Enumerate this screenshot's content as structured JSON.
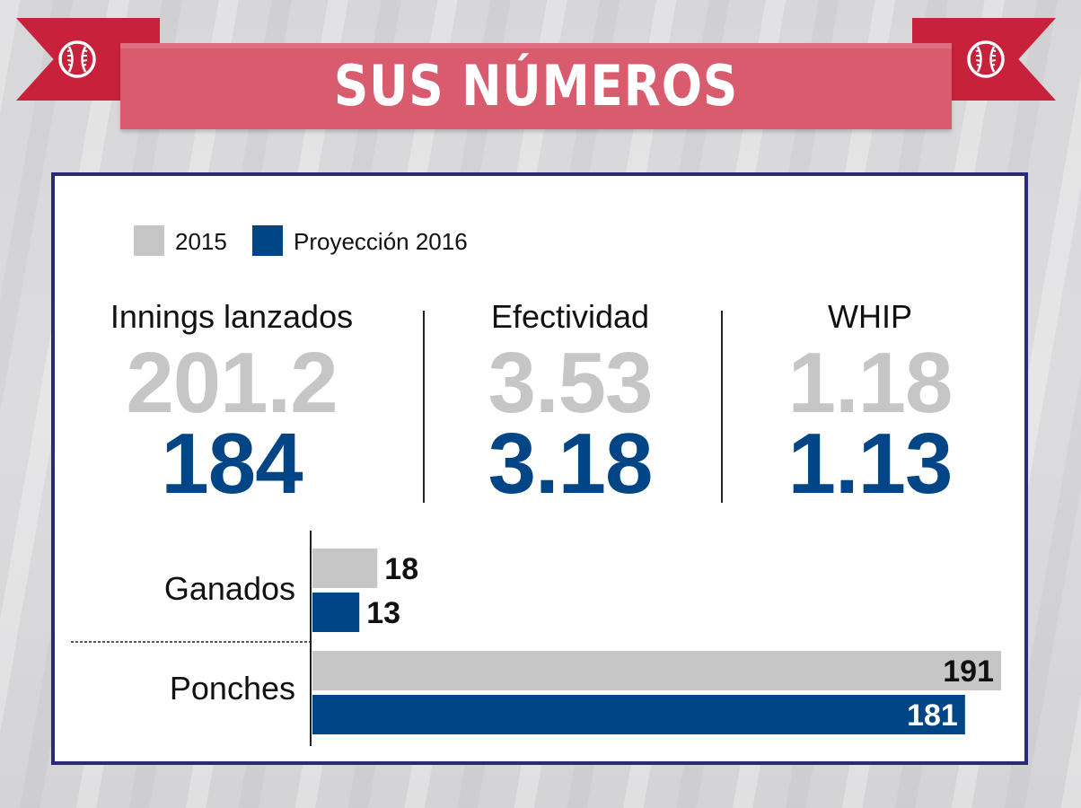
{
  "header": {
    "title": "SUS NÚMEROS"
  },
  "colors": {
    "ribbon": "#c8213b",
    "banner": "#d95b6e",
    "frame": "#2b2a7a",
    "prev": "#c6c6c6",
    "proj": "#004585"
  },
  "legend": [
    {
      "label": "2015",
      "color": "#c6c6c6"
    },
    {
      "label": "Proyección 2016",
      "color": "#004585"
    }
  ],
  "stats": [
    {
      "label": "Innings lanzados",
      "prev": "201.2",
      "proj": "184"
    },
    {
      "label": "Efectividad",
      "prev": "3.53",
      "proj": "3.18"
    },
    {
      "label": "WHIP",
      "prev": "1.18",
      "proj": "1.13"
    }
  ],
  "chart_data": {
    "type": "bar",
    "orientation": "horizontal",
    "categories": [
      "Ganados",
      "Ponches"
    ],
    "series": [
      {
        "name": "2015",
        "values": [
          18,
          191
        ]
      },
      {
        "name": "Proyección 2016",
        "values": [
          13,
          181
        ]
      }
    ],
    "xlim": [
      0,
      191
    ]
  }
}
